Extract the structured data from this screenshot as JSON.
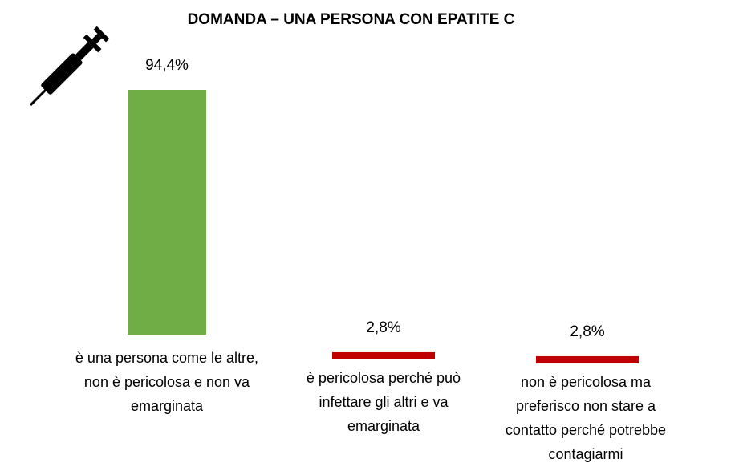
{
  "chart_data": {
    "type": "bar",
    "title": "DOMANDA – UNA PERSONA CON EPATITE C",
    "categories": [
      "è una persona come le altre,\nnon è pericolosa e non va\nemarginata",
      "è pericolosa perché può\ninfettare gli altri e va\nemarginata",
      "non è pericolosa ma\npreferisco non stare a\ncontatto perché potrebbe\ncontagiarmi"
    ],
    "values": [
      94.4,
      2.8,
      2.8
    ],
    "value_labels": [
      "94,4%",
      "2,8%",
      "2,8%"
    ],
    "colors": [
      "#70ad47",
      "#c00000",
      "#c00000"
    ],
    "ylim": [
      0,
      100
    ],
    "grid": false,
    "icon": "syringe-icon"
  }
}
